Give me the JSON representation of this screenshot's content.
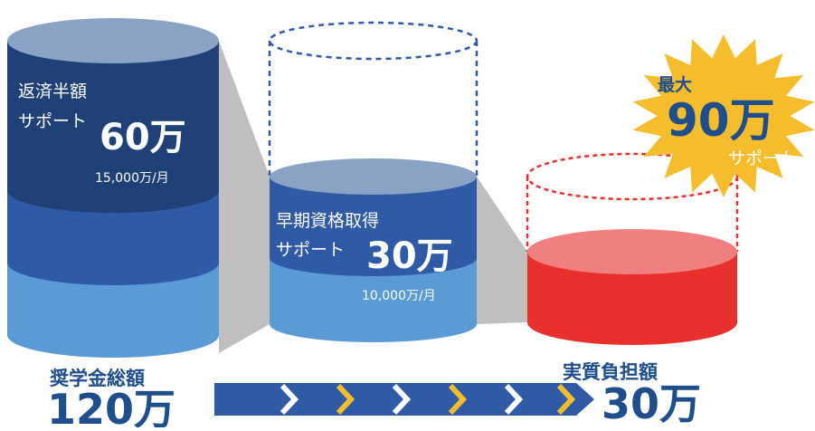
{
  "colors": {
    "dark_navy": "#1f4178",
    "navy": "#2f5aa6",
    "light_blue": "#5b9bd5",
    "top_grey_blue": "#8aa3c4",
    "connector_grey": "#bfbfbf",
    "dashed_blue": "#2f5aa6",
    "red": "#e8302c",
    "pink": "#f08080",
    "dashed_red": "#e8302c",
    "star_gold": "#f5bd2b",
    "text_blue": "#1e4e8c",
    "arrow_blue": "#2f5aa6",
    "chevron_gold": "#f5bd2b"
  },
  "cylinder1": {
    "title_line1": "返済半額",
    "title_line2": "サポート",
    "amount": "60万",
    "per_month": "15,000万/月"
  },
  "cylinder2": {
    "title_line1": "早期資格取得",
    "title_line2": "サポート",
    "amount": "30万",
    "per_month": "10,000万/月"
  },
  "starburst": {
    "line1": "最大",
    "amount": "90万",
    "line3": "サポート"
  },
  "bottom": {
    "left_label": "奨学金総額",
    "left_amount": "120万",
    "right_label": "実質負担額",
    "right_amount": "30万"
  }
}
